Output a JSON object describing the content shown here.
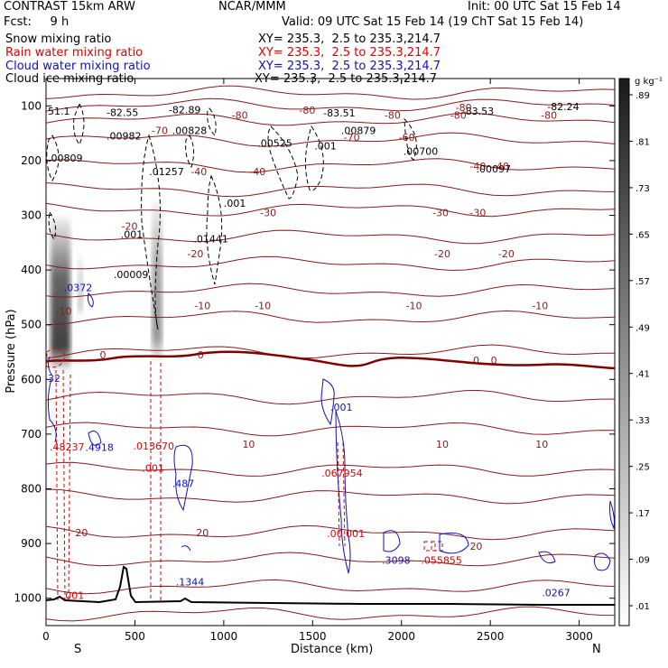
{
  "header": {
    "title": "CONTRAST 15km ARW",
    "center": "NCAR/MMM",
    "init": "Init: 00 UTC Sat 15 Feb 14",
    "fcst": "Fcst:     9 h",
    "valid": "Valid: 09 UTC Sat 15 Feb 14 (19 ChT Sat 15 Feb 14)",
    "legend": [
      {
        "label": "Snow mixing ratio",
        "xy": "XY= 235.3,  2.5 to 235.3,214.7",
        "color": "#000000"
      },
      {
        "label": "Rain water mixing ratio",
        "xy": "XY= 235.3,  2.5 to 235.3,214.7",
        "color": "#e00000"
      },
      {
        "label": "Cloud water mixing ratio",
        "xy": "XY= 235.3,  2.5 to 235.3,214.7",
        "color": "#1010c0"
      },
      {
        "label": "Cloud ice mixing ratio",
        "xy": "XY= 235.3,  2.5 to 235.3,214.7",
        "color": "#000000"
      }
    ]
  },
  "chart_data": {
    "type": "cross-section",
    "xlabel": "Distance (km)",
    "ylabel": "Pressure (hPa)",
    "xlim": [
      0,
      3200
    ],
    "ylim": [
      1050,
      50
    ],
    "x_ticks": [
      0,
      500,
      1000,
      1500,
      2000,
      2500,
      3000
    ],
    "y_ticks": [
      100,
      200,
      300,
      400,
      500,
      600,
      700,
      800,
      900,
      1000
    ],
    "end_labels": {
      "left": "S",
      "right": "N"
    },
    "colorbar": {
      "unit": "g kg⁻¹",
      "levels": [
        ".01",
        ".09",
        ".17",
        ".25",
        ".33",
        ".41",
        ".49",
        ".57",
        ".65",
        ".73",
        ".81",
        ".89"
      ]
    },
    "temperature_labels": [
      {
        "x": 2350,
        "p": 103,
        "text": "-80"
      },
      {
        "x": 1470,
        "p": 108,
        "text": "-80"
      },
      {
        "x": 2320,
        "p": 117,
        "text": "-80"
      },
      {
        "x": 2830,
        "p": 117,
        "text": "-80"
      },
      {
        "x": 1950,
        "p": 117,
        "text": "-80"
      },
      {
        "x": 1090,
        "p": 117,
        "text": "-80"
      },
      {
        "x": 640,
        "p": 145,
        "text": "-70"
      },
      {
        "x": 1720,
        "p": 157,
        "text": "-70"
      },
      {
        "x": 2030,
        "p": 157,
        "text": "-60"
      },
      {
        "x": 860,
        "p": 220,
        "text": "-40"
      },
      {
        "x": 1190,
        "p": 220,
        "text": "-40"
      },
      {
        "x": 2560,
        "p": 210,
        "text": "-40"
      },
      {
        "x": 2430,
        "p": 210,
        "text": "-40"
      },
      {
        "x": 1250,
        "p": 295,
        "text": "-30"
      },
      {
        "x": 2220,
        "p": 295,
        "text": "-30"
      },
      {
        "x": 2430,
        "p": 295,
        "text": "-30"
      },
      {
        "x": 470,
        "p": 320,
        "text": "-20"
      },
      {
        "x": 840,
        "p": 370,
        "text": "-20"
      },
      {
        "x": 2230,
        "p": 370,
        "text": "-20"
      },
      {
        "x": 2590,
        "p": 370,
        "text": "-20"
      },
      {
        "x": 100,
        "p": 475,
        "text": "-10"
      },
      {
        "x": 880,
        "p": 465,
        "text": "-10"
      },
      {
        "x": 2070,
        "p": 465,
        "text": "-10"
      },
      {
        "x": 2780,
        "p": 465,
        "text": "-10"
      },
      {
        "x": 1220,
        "p": 465,
        "text": "-10"
      },
      {
        "x": 320,
        "p": 555,
        "text": "0"
      },
      {
        "x": 870,
        "p": 555,
        "text": "0"
      },
      {
        "x": 2420,
        "p": 565,
        "text": "0"
      },
      {
        "x": 2520,
        "p": 565,
        "text": "0"
      },
      {
        "x": 1140,
        "p": 718,
        "text": "10"
      },
      {
        "x": 2230,
        "p": 718,
        "text": "10"
      },
      {
        "x": 2790,
        "p": 718,
        "text": "10"
      },
      {
        "x": 200,
        "p": 880,
        "text": "20"
      },
      {
        "x": 880,
        "p": 880,
        "text": "20"
      },
      {
        "x": 2420,
        "p": 905,
        "text": "20"
      }
    ],
    "maxima_labels": [
      {
        "x": 0,
        "p": 109,
        "text": "51.1",
        "color": "#000000"
      },
      {
        "x": 330,
        "p": 112,
        "text": "-82.55",
        "color": "#000000"
      },
      {
        "x": 680,
        "p": 107,
        "text": "-82.89",
        "color": "#000000"
      },
      {
        "x": 1550,
        "p": 113,
        "text": "-83.51",
        "color": "#000000"
      },
      {
        "x": 2330,
        "p": 109,
        "text": "-83.53",
        "color": "#000000"
      },
      {
        "x": 2810,
        "p": 101,
        "text": "-82.24",
        "color": "#000000"
      },
      {
        "x": 330,
        "p": 155,
        "text": ".00982",
        "color": "#000000"
      },
      {
        "x": 700,
        "p": 145,
        "text": ".00828",
        "color": "#000000"
      },
      {
        "x": 1180,
        "p": 168,
        "text": ".00525",
        "color": "#000000"
      },
      {
        "x": 1500,
        "p": 173,
        "text": ".001",
        "color": "#000000"
      },
      {
        "x": 1650,
        "p": 145,
        "text": ".00879",
        "color": "#000000"
      },
      {
        "x": 2000,
        "p": 183,
        "text": ".00700",
        "color": "#000000"
      },
      {
        "x": 0,
        "p": 195,
        "text": ".00809",
        "color": "#000000"
      },
      {
        "x": 570,
        "p": 220,
        "text": ".01257",
        "color": "#000000"
      },
      {
        "x": 2410,
        "p": 215,
        "text": ".00097",
        "color": "#000000"
      },
      {
        "x": 990,
        "p": 278,
        "text": ".001",
        "color": "#000000"
      },
      {
        "x": 410,
        "p": 335,
        "text": ".001",
        "color": "#000000"
      },
      {
        "x": 820,
        "p": 343,
        "text": ".01441",
        "color": "#000000"
      },
      {
        "x": 370,
        "p": 408,
        "text": ".00009",
        "color": "#000000"
      },
      {
        "x": 90,
        "p": 432,
        "text": ".0372",
        "color": "#1010c0"
      },
      {
        "x": 0,
        "p": 598,
        "text": "32",
        "color": "#1010c0"
      },
      {
        "x": 1590,
        "p": 651,
        "text": ".001",
        "color": "#1010c0"
      },
      {
        "x": 10,
        "p": 723,
        "text": ".48237",
        "color": "#e00000"
      },
      {
        "x": 210,
        "p": 724,
        "text": ".4918",
        "color": "#1010c0"
      },
      {
        "x": 480,
        "p": 722,
        "text": ".013670",
        "color": "#e00000"
      },
      {
        "x": 1540,
        "p": 771,
        "text": ".067954",
        "color": "#e00000"
      },
      {
        "x": 530,
        "p": 762,
        "text": ".001",
        "color": "#e00000"
      },
      {
        "x": 700,
        "p": 790,
        "text": ".487",
        "color": "#1010c0"
      },
      {
        "x": 1570,
        "p": 882,
        "text": ".00.001",
        "color": "#e00000"
      },
      {
        "x": 1880,
        "p": 930,
        "text": ".3098",
        "color": "#1010c0"
      },
      {
        "x": 2100,
        "p": 930,
        "text": ".055855",
        "color": "#e00000"
      },
      {
        "x": 720,
        "p": 970,
        "text": ".1344",
        "color": "#1010c0"
      },
      {
        "x": 2780,
        "p": 990,
        "text": ".0267",
        "color": "#1010c0"
      },
      {
        "x": 80,
        "p": 995,
        "text": ".001",
        "color": "#e00000"
      }
    ]
  }
}
